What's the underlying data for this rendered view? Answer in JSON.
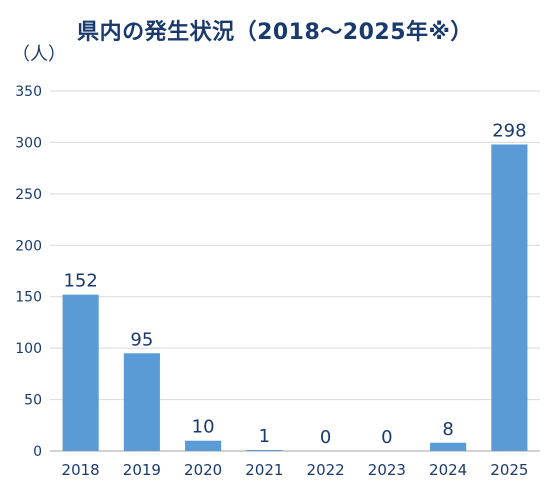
{
  "chart_data": {
    "type": "bar",
    "title": "県内の発生状況（2018～2025年※）",
    "unit_label": "（人）",
    "categories": [
      "2018",
      "2019",
      "2020",
      "2021",
      "2022",
      "2023",
      "2024",
      "2025"
    ],
    "values": [
      152,
      95,
      10,
      1,
      0,
      0,
      8,
      298
    ],
    "ylim": [
      0,
      350
    ],
    "yticks": [
      0,
      50,
      100,
      150,
      200,
      250,
      300,
      350
    ],
    "grid": true,
    "legend": "none",
    "bar_color": "#5b9bd5",
    "text_color": "#1a3a6e",
    "grid_color": "#d9d9d9"
  }
}
